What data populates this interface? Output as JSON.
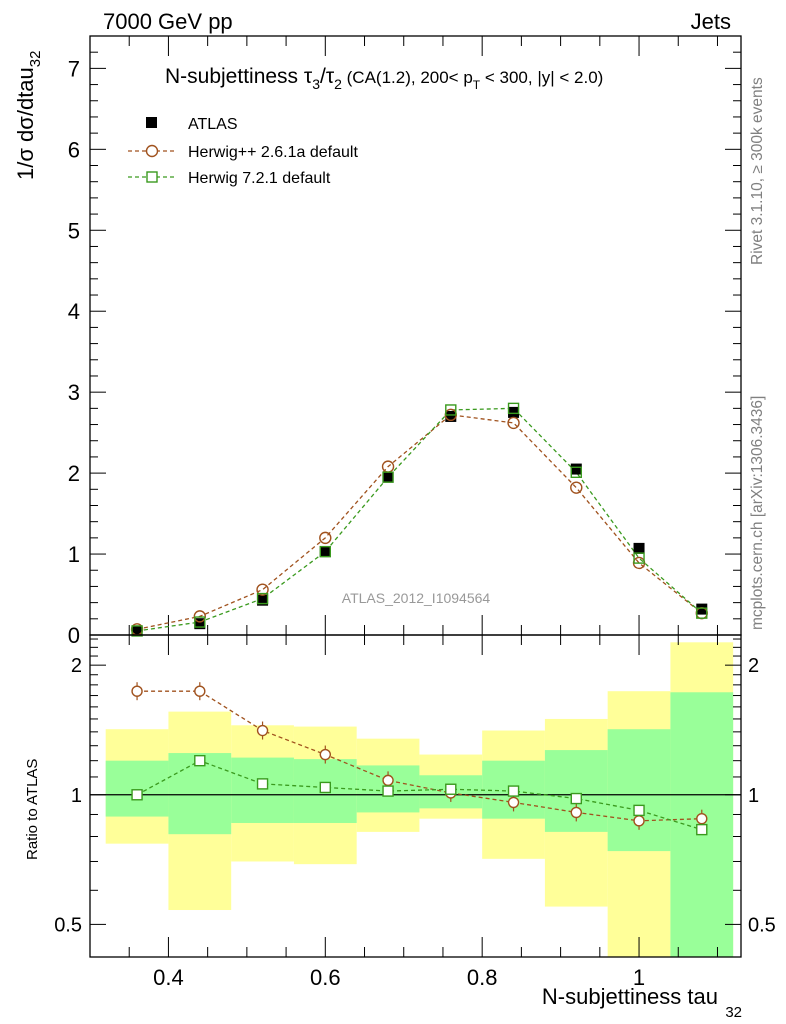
{
  "header": {
    "energy_label": "7000 GeV pp",
    "process_label": "Jets"
  },
  "side_labels": {
    "rivet": "Rivet 3.1.10, ≥ 300k events",
    "mcplots": "mcplots.cern.ch [arXiv:1306.3436]"
  },
  "title": {
    "prefix": "N-subjettiness ",
    "tau": "τ",
    "sub3": "3",
    "slash": "/",
    "sub2": "2",
    "cuts_a": " (CA(1.2), 200< p",
    "sub_t": "T",
    "cuts_b": " < 300, |y| < 2.0)"
  },
  "main_ylabel": {
    "text": "1/σ dσ/dtau",
    "sub": "32"
  },
  "ratio_ylabel": "Ratio to ATLAS",
  "xlabel": {
    "text": "N-subjettiness tau",
    "sub": "32"
  },
  "watermark": "ATLAS_2012_I1094564",
  "legend": [
    {
      "key": "atlas",
      "label": "ATLAS"
    },
    {
      "key": "herwigpp",
      "label": "Herwig++ 2.6.1a default"
    },
    {
      "key": "herwig7",
      "label": "Herwig 7.2.1 default"
    }
  ],
  "colors": {
    "data": "#000000",
    "herwigpp": "#a0521e",
    "herwig7": "#3a9a1e",
    "band_inner": "#99ff99",
    "band_outer": "#ffff99"
  },
  "chart_data": [
    {
      "type": "scatter",
      "panel": "main",
      "xlim": [
        0.3,
        1.13
      ],
      "ylim": [
        0,
        7.4
      ],
      "xticks": [
        0.4,
        0.6,
        0.8,
        1.0
      ],
      "xtick_labels": [
        "0.4",
        "0.6",
        "0.8",
        "1"
      ],
      "yticks": [
        0,
        1,
        2,
        3,
        4,
        5,
        6,
        7
      ],
      "ytick_labels": [
        "0",
        "1",
        "2",
        "3",
        "4",
        "5",
        "6",
        "7"
      ],
      "bin_edges": [
        0.32,
        0.4,
        0.48,
        0.56,
        0.64,
        0.72,
        0.8,
        0.88,
        0.96,
        1.04,
        1.12
      ],
      "x": [
        0.36,
        0.44,
        0.52,
        0.6,
        0.68,
        0.76,
        0.84,
        0.92,
        1.0,
        1.08
      ],
      "series": [
        {
          "name": "ATLAS",
          "values": [
            0.05,
            0.14,
            0.43,
            1.03,
            1.95,
            2.7,
            2.75,
            2.05,
            1.07,
            0.32
          ]
        },
        {
          "name": "Herwig++ 2.6.1a default",
          "values": [
            0.07,
            0.23,
            0.56,
            1.2,
            2.08,
            2.72,
            2.62,
            1.82,
            0.89,
            0.27
          ]
        },
        {
          "name": "Herwig 7.2.1 default",
          "values": [
            0.05,
            0.16,
            0.45,
            1.03,
            1.95,
            2.78,
            2.8,
            2.01,
            0.95,
            0.27
          ]
        }
      ]
    },
    {
      "type": "scatter",
      "panel": "ratio",
      "scale": "log",
      "ylabel": "Ratio to ATLAS",
      "xlabel": "N-subjettiness tau32",
      "xlim": [
        0.3,
        1.13
      ],
      "ylim": [
        0.42,
        2.35
      ],
      "xticks": [
        0.4,
        0.6,
        0.8,
        1.0
      ],
      "xtick_labels": [
        "0.4",
        "0.6",
        "0.8",
        "1"
      ],
      "yticks": [
        0.5,
        1,
        2
      ],
      "ytick_labels": [
        "0.5",
        "1",
        "2"
      ],
      "bin_edges": [
        0.32,
        0.4,
        0.48,
        0.56,
        0.64,
        0.72,
        0.8,
        0.88,
        0.96,
        1.04,
        1.12
      ],
      "x": [
        0.36,
        0.44,
        0.52,
        0.6,
        0.68,
        0.76,
        0.84,
        0.92,
        1.0,
        1.08
      ],
      "band_inner_lo": [
        0.89,
        0.81,
        0.86,
        0.86,
        0.91,
        0.93,
        0.88,
        0.82,
        0.74,
        0.39
      ],
      "band_inner_hi": [
        1.2,
        1.25,
        1.22,
        1.21,
        1.17,
        1.11,
        1.2,
        1.27,
        1.42,
        1.73
      ],
      "band_outer_lo": [
        0.77,
        0.54,
        0.7,
        0.69,
        0.82,
        0.88,
        0.71,
        0.55,
        0.4,
        0.38
      ],
      "band_outer_hi": [
        1.42,
        1.56,
        1.45,
        1.44,
        1.35,
        1.24,
        1.41,
        1.5,
        1.74,
        2.26
      ],
      "series": [
        {
          "name": "Herwig++ 2.6.1a default",
          "values": [
            1.74,
            1.74,
            1.41,
            1.24,
            1.08,
            1.01,
            0.96,
            0.91,
            0.87,
            0.88
          ]
        },
        {
          "name": "Herwig 7.2.1 default",
          "values": [
            1.0,
            1.2,
            1.06,
            1.04,
            1.02,
            1.03,
            1.02,
            0.98,
            0.92,
            0.83
          ]
        }
      ]
    }
  ]
}
